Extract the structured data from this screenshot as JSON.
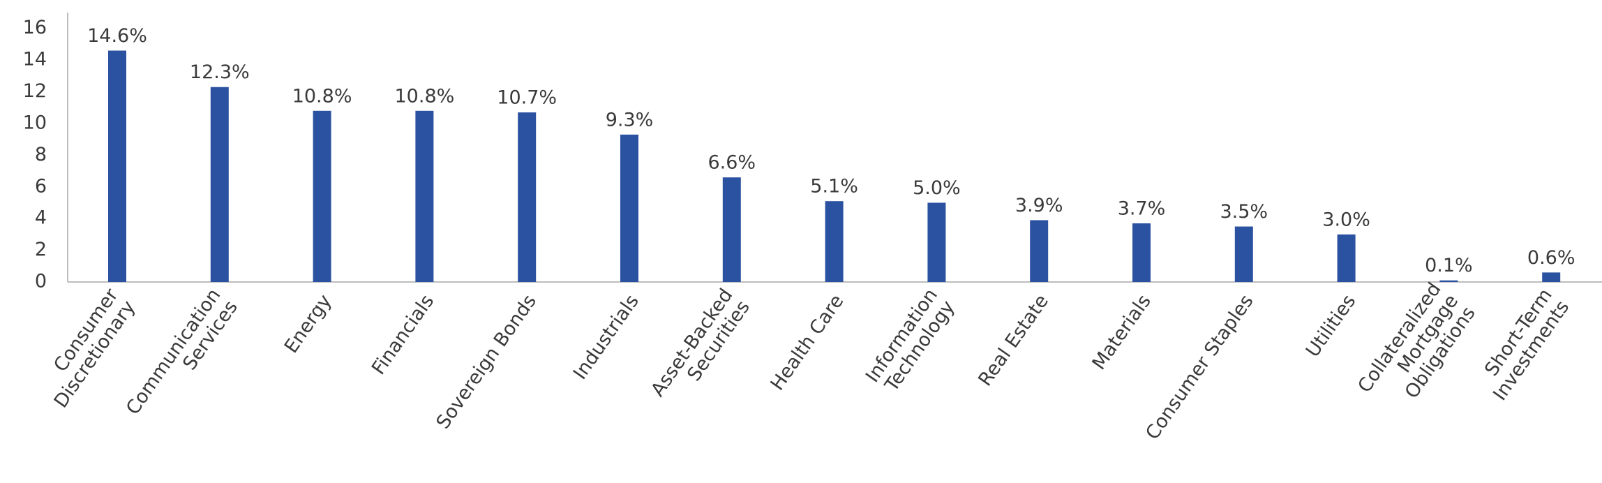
{
  "chart_data": {
    "type": "bar",
    "categories": [
      [
        "Consumer",
        "Discretionary"
      ],
      [
        "Communication",
        "Services"
      ],
      [
        "Energy"
      ],
      [
        "Financials"
      ],
      [
        "Sovereign Bonds"
      ],
      [
        "Industrials"
      ],
      [
        "Asset-Backed",
        "Securities"
      ],
      [
        "Health Care"
      ],
      [
        "Information",
        "Technology"
      ],
      [
        "Real Estate"
      ],
      [
        "Materials"
      ],
      [
        "Consumer Staples"
      ],
      [
        "Utilities"
      ],
      [
        "Collateralized",
        "Mortgage",
        "Obligations"
      ],
      [
        "Short-Term",
        "Investments"
      ]
    ],
    "values": [
      14.6,
      12.3,
      10.8,
      10.8,
      10.7,
      9.3,
      6.6,
      5.1,
      5.0,
      3.9,
      3.7,
      3.5,
      3.0,
      0.1,
      0.6
    ],
    "value_labels": [
      "14.6%",
      "12.3%",
      "10.8%",
      "10.8%",
      "10.7%",
      "9.3%",
      "6.6%",
      "5.1%",
      "5.0%",
      "3.9%",
      "3.7%",
      "3.5%",
      "3.0%",
      "0.1%",
      "0.6%"
    ],
    "color": "#2b52a1",
    "ylim": [
      0,
      17
    ],
    "yticks": [
      0,
      2,
      4,
      6,
      8,
      10,
      12,
      14,
      16
    ],
    "grid": false
  }
}
